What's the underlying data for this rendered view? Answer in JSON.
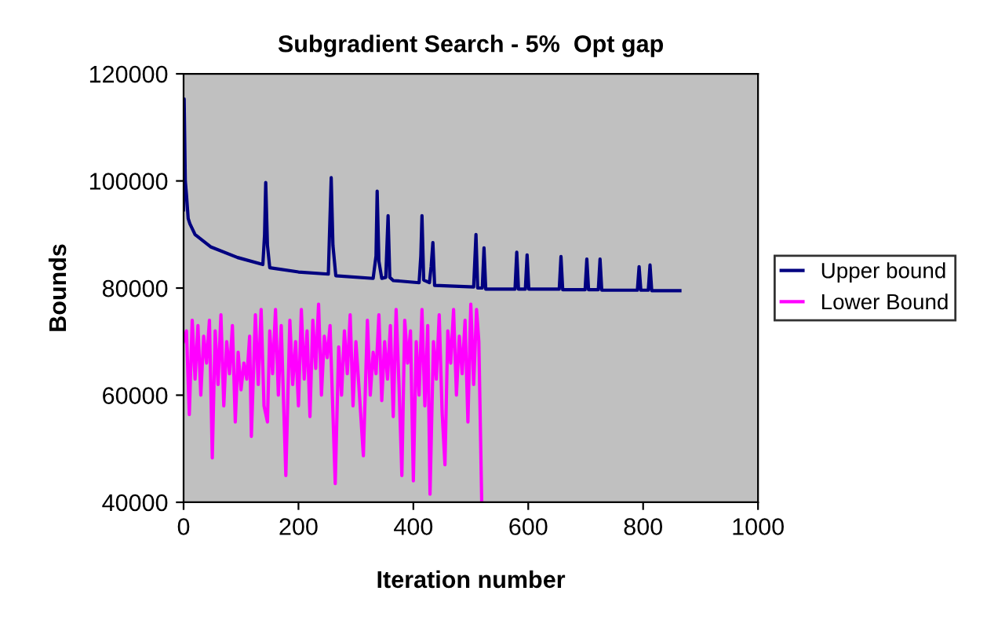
{
  "chart_data": {
    "type": "line",
    "title": "Subgradient Search - 5%  Opt gap",
    "xlabel": "Iteration number",
    "ylabel": "Bounds",
    "xlim": [
      0,
      1000
    ],
    "xticks": [
      0,
      200,
      400,
      600,
      800,
      1000
    ],
    "ylim": [
      40000,
      120000
    ],
    "yticks": [
      40000,
      60000,
      80000,
      100000,
      120000
    ],
    "grid": false,
    "legend": "right",
    "marker": "none",
    "line_style": "solid",
    "series": [
      {
        "name": "Upper bound",
        "color": "#000080",
        "x": [
          0,
          1,
          3,
          5,
          8,
          11,
          20,
          47,
          94,
          138,
          141,
          143,
          146,
          150,
          200,
          252,
          254,
          257,
          260,
          265,
          330,
          335,
          337,
          340,
          345,
          352,
          356,
          359,
          365,
          410,
          413,
          415,
          418,
          428,
          431,
          434,
          437,
          505,
          509,
          512,
          520,
          523,
          526,
          577,
          580,
          583,
          595,
          598,
          601,
          654,
          657,
          660,
          699,
          702,
          705,
          722,
          725,
          728,
          790,
          793,
          796,
          809,
          812,
          815,
          864
        ],
        "values": [
          94600,
          115300,
          100000,
          97500,
          93000,
          92000,
          90000,
          87700,
          85700,
          84400,
          90000,
          99700,
          88000,
          83800,
          83000,
          82600,
          90000,
          100600,
          88000,
          82300,
          81800,
          86000,
          98100,
          85000,
          81800,
          82000,
          93500,
          82000,
          81400,
          81000,
          86000,
          93500,
          81500,
          81000,
          84000,
          88500,
          80500,
          80200,
          90000,
          80000,
          80000,
          87500,
          79800,
          79800,
          86700,
          79800,
          79800,
          86200,
          79800,
          79800,
          85900,
          79700,
          79700,
          85400,
          79700,
          79700,
          85400,
          79600,
          79600,
          84000,
          79600,
          79600,
          84300,
          79500,
          79500
        ]
      },
      {
        "name": "Lower Bound",
        "color": "#ff00ff",
        "x": [
          0,
          5,
          10,
          15,
          20,
          25,
          30,
          35,
          40,
          45,
          50,
          55,
          60,
          65,
          70,
          75,
          80,
          85,
          90,
          95,
          100,
          105,
          110,
          115,
          118,
          125,
          130,
          135,
          140,
          146,
          150,
          155,
          160,
          165,
          170,
          178,
          185,
          190,
          195,
          200,
          205,
          210,
          215,
          220,
          225,
          230,
          235,
          240,
          245,
          250,
          255,
          264,
          270,
          275,
          280,
          285,
          290,
          295,
          300,
          305,
          313,
          320,
          325,
          330,
          335,
          340,
          345,
          350,
          355,
          360,
          365,
          370,
          375,
          380,
          385,
          390,
          395,
          400,
          405,
          410,
          415,
          420,
          425,
          429,
          435,
          440,
          445,
          450,
          455,
          460,
          465,
          470,
          475,
          480,
          485,
          490,
          495,
          500,
          505,
          510,
          514,
          519
        ],
        "values": [
          70000,
          72000,
          56400,
          74000,
          63000,
          73000,
          60000,
          71000,
          66000,
          74000,
          48300,
          72000,
          62000,
          75000,
          58000,
          70000,
          64000,
          73000,
          55000,
          68000,
          61000,
          66000,
          63000,
          71000,
          52300,
          75000,
          62000,
          76000,
          58000,
          55000,
          72000,
          64000,
          76000,
          60000,
          73000,
          45000,
          74000,
          62000,
          70000,
          58000,
          76000,
          63000,
          72000,
          56000,
          74000,
          65000,
          77000,
          60000,
          71000,
          67000,
          73000,
          43500,
          69000,
          60000,
          72000,
          64000,
          75000,
          58000,
          70000,
          62000,
          48700,
          74000,
          60000,
          68000,
          64000,
          75000,
          59000,
          70000,
          63000,
          73000,
          56000,
          76000,
          62000,
          45000,
          74000,
          66000,
          72000,
          44000,
          70000,
          60000,
          76000,
          58000,
          73000,
          41500,
          70000,
          63000,
          75000,
          57000,
          47000,
          72000,
          66000,
          76000,
          60000,
          71000,
          64000,
          74000,
          55000,
          77000,
          62000,
          76000,
          70000,
          40000
        ]
      }
    ]
  }
}
